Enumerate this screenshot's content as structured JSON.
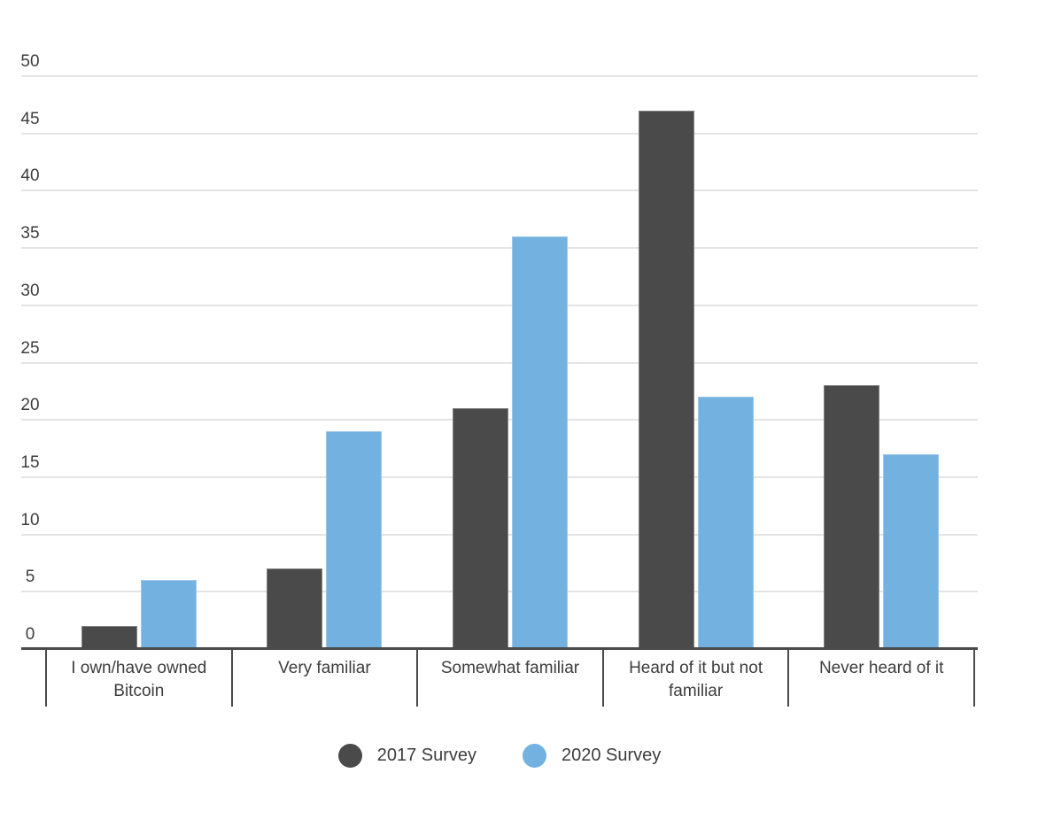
{
  "chart_data": {
    "type": "bar",
    "title": "",
    "xlabel": "",
    "ylabel": "",
    "categories": [
      "I own/have owned Bitcoin",
      "Very familiar",
      "Somewhat familiar",
      "Heard of it but not familiar",
      "Never heard of it"
    ],
    "series": [
      {
        "name": "2017 Survey",
        "color": "#4a4a4a",
        "values": [
          2,
          7,
          21,
          47,
          23
        ]
      },
      {
        "name": "2020 Survey",
        "color": "#73b1e0",
        "values": [
          6,
          19,
          36,
          22,
          17
        ]
      }
    ],
    "ylim": [
      0,
      50
    ],
    "ytick_step": 5,
    "yticks": [
      0,
      5,
      10,
      15,
      20,
      25,
      30,
      35,
      40,
      45,
      50
    ],
    "grid": true,
    "legend_position": "bottom"
  },
  "colors": {
    "grid": "#e4e4e4",
    "axis": "#4a4a4a",
    "text": "#3d3d3d",
    "background": "#ffffff"
  }
}
